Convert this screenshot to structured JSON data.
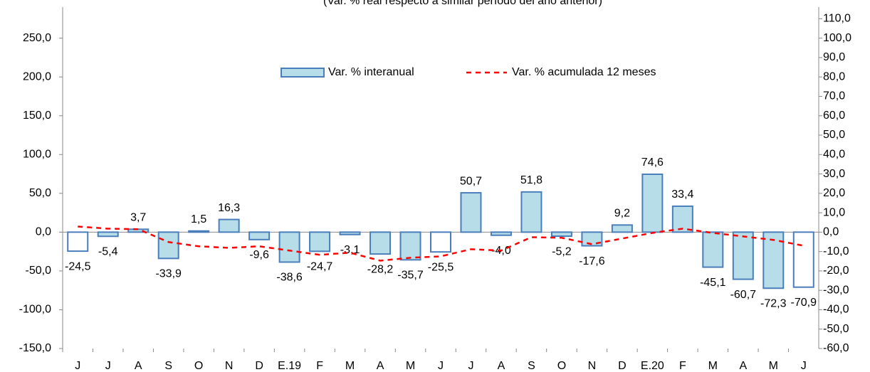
{
  "chart_data": {
    "type": "bar-line",
    "title": "(Var. % real respecto a similar período del año anterior)",
    "categories": [
      "J",
      "J",
      "A",
      "S",
      "O",
      "N",
      "D",
      "E.19",
      "F",
      "M",
      "A",
      "M",
      "J",
      "J",
      "A",
      "S",
      "O",
      "N",
      "D",
      "E.20",
      "F",
      "M",
      "A",
      "M",
      "J"
    ],
    "series": [
      {
        "name": "Var. % interanual",
        "type": "bar",
        "color": "#b7dde8",
        "stroke": "#4a7ebb",
        "colors": [
          "#ffffff",
          "#b7dde8",
          "#b7dde8",
          "#b7dde8",
          "#b7dde8",
          "#b7dde8",
          "#b7dde8",
          "#b7dde8",
          "#b7dde8",
          "#b7dde8",
          "#b7dde8",
          "#b7dde8",
          "#ffffff",
          "#b7dde8",
          "#b7dde8",
          "#b7dde8",
          "#b7dde8",
          "#b7dde8",
          "#b7dde8",
          "#b7dde8",
          "#b7dde8",
          "#b7dde8",
          "#b7dde8",
          "#b7dde8",
          "#ffffff"
        ],
        "values": [
          -24.5,
          -5.4,
          3.7,
          -33.9,
          1.5,
          16.3,
          -9.6,
          -38.6,
          -24.7,
          -3.1,
          -28.2,
          -35.7,
          -25.5,
          50.7,
          -4.0,
          51.8,
          -5.2,
          -17.6,
          9.2,
          74.6,
          33.4,
          -45.1,
          -60.7,
          -72.3,
          -70.9
        ],
        "value_labels": [
          "-24,5",
          "-5,4",
          "3,7",
          "-33,9",
          "1,5",
          "16,3",
          "-9,6",
          "-38,6",
          "-24,7",
          "-3,1",
          "-28,2",
          "-35,7",
          "-25,5",
          "50,7",
          "-4,0",
          "51,8",
          "-5,2",
          "-17,6",
          "9,2",
          "74,6",
          "33,4",
          "-45,1",
          "-60,7",
          "-72,3",
          "-70,9"
        ]
      },
      {
        "name": "Var. % acumulada 12 meses",
        "type": "line",
        "axis": "y2",
        "color": "#ff0000",
        "dashed": true,
        "values": [
          2.9,
          1.8,
          1.5,
          -5.1,
          -7.3,
          -8.1,
          -7.3,
          -9.5,
          -11.7,
          -10.6,
          -14.7,
          -13.2,
          -12.5,
          -8.8,
          -9.5,
          -2.6,
          -2.9,
          -6.2,
          -3.3,
          -0.4,
          1.8,
          -0.4,
          -2.2,
          -4.0,
          -7.0
        ]
      }
    ],
    "ylim": [
      -150,
      290
    ],
    "yticks": [
      {
        "value": -150,
        "label": "-150,0"
      },
      {
        "value": -100,
        "label": "-100,0"
      },
      {
        "value": -50,
        "label": "-50,0"
      },
      {
        "value": 0,
        "label": "0,0"
      },
      {
        "value": 50,
        "label": "50,0"
      },
      {
        "value": 100,
        "label": "100,0"
      },
      {
        "value": 150,
        "label": "150,0"
      },
      {
        "value": 200,
        "label": "200,0"
      },
      {
        "value": 250,
        "label": "250,0"
      }
    ],
    "y2lim": [
      -60,
      116
    ],
    "y2ticks": [
      {
        "value": -60,
        "label": "-60,0"
      },
      {
        "value": -50,
        "label": "-50,0"
      },
      {
        "value": -40,
        "label": "-40,0"
      },
      {
        "value": -30,
        "label": "-30,0"
      },
      {
        "value": -20,
        "label": "-20,0"
      },
      {
        "value": -10,
        "label": "-10,0"
      },
      {
        "value": 0,
        "label": "0,0"
      },
      {
        "value": 10,
        "label": "10,0"
      },
      {
        "value": 20,
        "label": "20,0"
      },
      {
        "value": 30,
        "label": "30,0"
      },
      {
        "value": 40,
        "label": "40,0"
      },
      {
        "value": 50,
        "label": "50,0"
      },
      {
        "value": 60,
        "label": "60,0"
      },
      {
        "value": 70,
        "label": "70,0"
      },
      {
        "value": 80,
        "label": "80,0"
      },
      {
        "value": 90,
        "label": "90,0"
      },
      {
        "value": 100,
        "label": "100,0"
      },
      {
        "value": 110,
        "label": "110,0"
      }
    ]
  }
}
